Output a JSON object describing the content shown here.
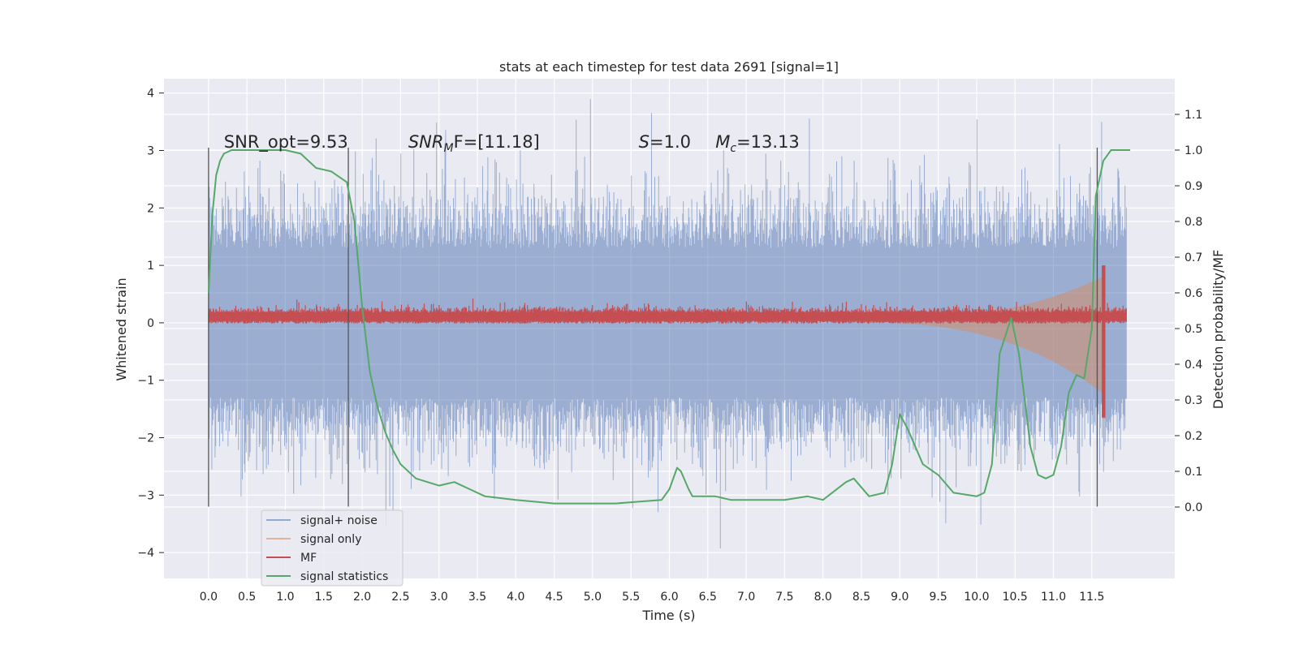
{
  "chart_data": {
    "type": "line",
    "title": "stats at each timestep for test data 2691 [signal=1]",
    "xlabel": "Time (s)",
    "ylabel": "Whitened strain",
    "ylabel_right": "Detection probability/MF",
    "xlim": [
      -0.58,
      12.58
    ],
    "ylim": [
      -4.45,
      4.25
    ],
    "ylim_right": [
      -0.2,
      1.2
    ],
    "x_ticks": [
      "0.0",
      "0.5",
      "1.0",
      "1.5",
      "2.0",
      "2.5",
      "3.0",
      "3.5",
      "4.0",
      "4.5",
      "5.0",
      "5.5",
      "6.0",
      "6.5",
      "7.0",
      "7.5",
      "8.0",
      "8.5",
      "9.0",
      "9.5",
      "10.0",
      "10.5",
      "11.0",
      "11.5"
    ],
    "y_ticks": [
      "4",
      "3",
      "2",
      "1",
      "0",
      "−1",
      "−2",
      "−3",
      "−4"
    ],
    "y_ticks_right": [
      "1.1",
      "1.0",
      "0.9",
      "0.8",
      "0.7",
      "0.6",
      "0.5",
      "0.4",
      "0.3",
      "0.2",
      "0.1",
      "0.0"
    ],
    "grid": true,
    "legend_position": "lower-left",
    "annotations": [
      {
        "text": "SNR_opt=9.53",
        "x": 0.2,
        "y": 3.05
      },
      {
        "text": "SNR",
        "sub": "M",
        "tail": "F=[11.18]",
        "x": 2.6,
        "y": 3.05
      },
      {
        "text": "S",
        "tail": "=1.0",
        "x": 5.6,
        "y": 3.05
      },
      {
        "text": "M",
        "sub": "c",
        "tail": "=13.13",
        "x": 6.6,
        "y": 3.05
      }
    ],
    "vertical_lines": [
      0.0,
      1.82,
      11.57
    ],
    "series": [
      {
        "name": "signal+ noise",
        "color": "#4c72b0",
        "style": "noise",
        "envelope": 1.9,
        "peak": 3.9
      },
      {
        "name": "signal only",
        "color": "#dd8452",
        "style": "chirp",
        "t_start": 8.0,
        "t_merge": 11.67,
        "amplitude_max": 0.8
      },
      {
        "name": "MF",
        "color": "#c44e52",
        "style": "band",
        "center": 0.12,
        "width": 0.12,
        "spike_x": 11.65,
        "spike_top": 1.0,
        "spike_bottom": -1.65
      },
      {
        "name": "signal statistics",
        "color": "#55a868",
        "axis": "right",
        "x": [
          0.0,
          0.05,
          0.1,
          0.15,
          0.2,
          0.3,
          0.5,
          0.8,
          1.0,
          1.2,
          1.4,
          1.5,
          1.6,
          1.8,
          1.9,
          2.0,
          2.1,
          2.2,
          2.3,
          2.4,
          2.5,
          2.7,
          3.0,
          3.2,
          3.4,
          3.6,
          4.0,
          4.5,
          5.0,
          5.3,
          5.6,
          5.9,
          6.0,
          6.1,
          6.15,
          6.25,
          6.3,
          6.4,
          6.6,
          6.8,
          7.0,
          7.5,
          7.8,
          8.0,
          8.3,
          8.4,
          8.6,
          8.8,
          8.9,
          9.0,
          9.1,
          9.3,
          9.5,
          9.7,
          10.0,
          10.1,
          10.2,
          10.3,
          10.45,
          10.55,
          10.65,
          10.7,
          10.8,
          10.9,
          11.0,
          11.1,
          11.2,
          11.3,
          11.4,
          11.5,
          11.55,
          11.65,
          11.75,
          11.9,
          12.0
        ],
        "values": [
          0.6,
          0.82,
          0.93,
          0.97,
          0.99,
          1.0,
          1.0,
          1.0,
          1.0,
          0.99,
          0.95,
          0.945,
          0.94,
          0.91,
          0.8,
          0.56,
          0.38,
          0.28,
          0.21,
          0.16,
          0.12,
          0.08,
          0.06,
          0.07,
          0.05,
          0.03,
          0.02,
          0.01,
          0.01,
          0.01,
          0.015,
          0.02,
          0.05,
          0.11,
          0.1,
          0.05,
          0.03,
          0.03,
          0.03,
          0.02,
          0.02,
          0.02,
          0.03,
          0.02,
          0.07,
          0.08,
          0.03,
          0.04,
          0.12,
          0.26,
          0.22,
          0.12,
          0.09,
          0.04,
          0.03,
          0.04,
          0.12,
          0.43,
          0.53,
          0.43,
          0.26,
          0.17,
          0.09,
          0.08,
          0.09,
          0.17,
          0.32,
          0.37,
          0.36,
          0.5,
          0.87,
          0.97,
          1.0,
          1.0,
          1.0
        ]
      }
    ]
  }
}
